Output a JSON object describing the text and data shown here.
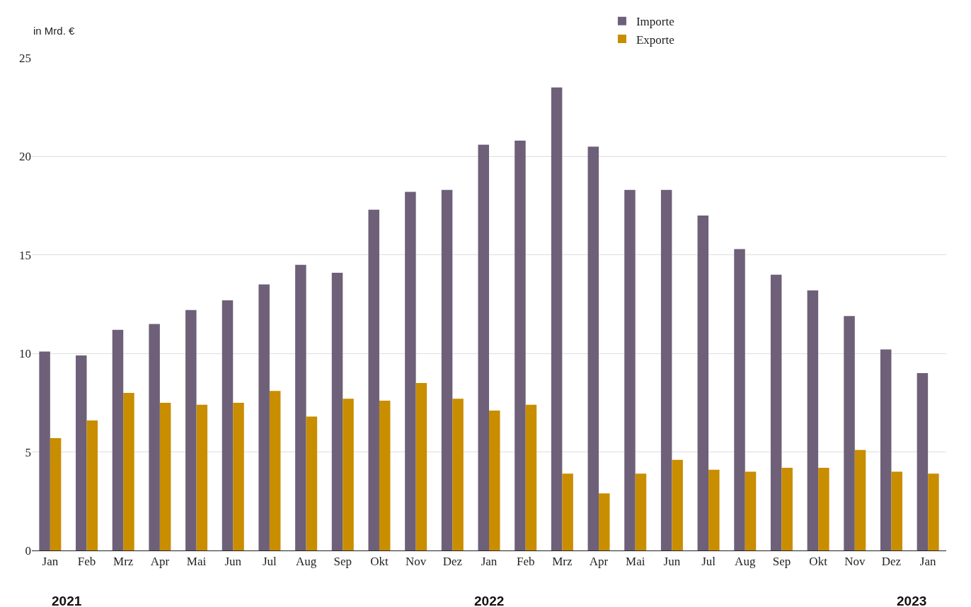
{
  "chart_data": {
    "type": "bar",
    "ylabel": "in Mrd. €",
    "categories": [
      "Jan",
      "Feb",
      "Mrz",
      "Apr",
      "Mai",
      "Jun",
      "Jul",
      "Aug",
      "Sep",
      "Okt",
      "Nov",
      "Dez",
      "Jan",
      "Feb",
      "Mrz",
      "Apr",
      "Mai",
      "Jun",
      "Jul",
      "Aug",
      "Sep",
      "Okt",
      "Nov",
      "Dez",
      "Jan"
    ],
    "series": [
      {
        "name": "Importe",
        "color": "#6e6078",
        "values": [
          10.1,
          9.9,
          11.2,
          11.5,
          12.2,
          12.7,
          13.5,
          14.5,
          14.1,
          17.3,
          18.2,
          18.3,
          20.6,
          20.8,
          23.5,
          20.5,
          18.3,
          18.3,
          17.0,
          15.3,
          14.0,
          13.2,
          11.9,
          10.2,
          9.0
        ]
      },
      {
        "name": "Exporte",
        "color": "#c98d00",
        "values": [
          5.7,
          6.6,
          8.0,
          7.5,
          7.4,
          7.5,
          8.1,
          6.8,
          7.7,
          7.6,
          8.5,
          7.7,
          7.1,
          7.4,
          3.9,
          2.9,
          3.9,
          4.6,
          4.1,
          4.0,
          4.2,
          4.2,
          5.1,
          4.0,
          3.9
        ]
      }
    ],
    "ylim": [
      0,
      25
    ],
    "yticks": [
      0,
      5,
      10,
      15,
      20,
      25
    ],
    "grid": "y",
    "legend": "top",
    "annotations": [
      "2021",
      "2022",
      "2023"
    ]
  }
}
